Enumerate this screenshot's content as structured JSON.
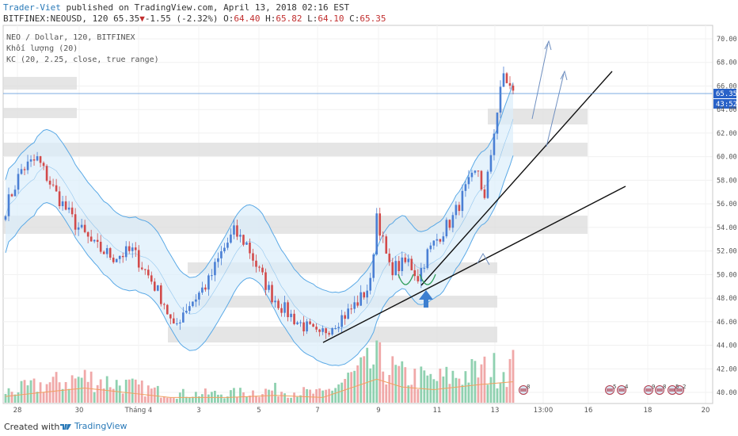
{
  "header": {
    "author": "Trader-Viet",
    "published_text": "published on TradingView.com, April 13, 2018 02:16 EST",
    "symbol_line": "BITFINEX:NEOUSD, 120 65.35",
    "change_arrow": "▼",
    "change": "-1.55 (-2.32%)",
    "o_label": "O:",
    "o_value": "64.40",
    "h_label": "H:",
    "h_value": "65.82",
    "l_label": "L:",
    "l_value": "64.10",
    "c_label": "C:",
    "c_value": "65.35"
  },
  "legend": {
    "line1": "NEO / Dollar, 120, BITFINEX",
    "line2": "Khối lượng (20)",
    "line3": "KC (20, 2.25, close, true range)"
  },
  "price_axis": {
    "ticks": [
      "70.00",
      "68.00",
      "66.00",
      "64.00",
      "62.00",
      "60.00",
      "58.00",
      "56.00",
      "54.00",
      "52.00",
      "50.00",
      "48.00",
      "46.00",
      "44.00",
      "42.00",
      "40.00"
    ],
    "last_price": "65.35",
    "countdown": "43:52"
  },
  "time_axis": {
    "labels": [
      "28",
      "30",
      "Tháng 4",
      "3",
      "5",
      "7",
      "9",
      "11",
      "13",
      "13:00",
      "16",
      "18",
      "20"
    ]
  },
  "event_markers": [
    "8",
    "5",
    "4",
    "9",
    "8",
    "5",
    "2"
  ],
  "footer": {
    "created_with": "Created with",
    "brand": "TradingView"
  },
  "colors": {
    "up": "#4a7fd4",
    "down": "#d24a4a",
    "vol_up": "#8fd1b0",
    "vol_down": "#f0a8a8",
    "band": "#5aa9e6",
    "band_fill": "#dbeefb",
    "zone": "#dcdcdc",
    "ma": "#f0a060",
    "trend": "#111111",
    "arrow": "#3d7fd0"
  },
  "chart_data": {
    "type": "candlestick",
    "symbol": "BITFINEX:NEOUSD",
    "interval": "120",
    "ylim": [
      39.5,
      70.8
    ],
    "last_price": 65.35,
    "ohlc_keypoints": [
      [
        0,
        55.6
      ],
      [
        5,
        58.9
      ],
      [
        10,
        59.8
      ],
      [
        16,
        56.8
      ],
      [
        22,
        54.3
      ],
      [
        28,
        52.4
      ],
      [
        34,
        51.5
      ],
      [
        40,
        52.0
      ],
      [
        46,
        49.5
      ],
      [
        50,
        47.6
      ],
      [
        53,
        45.3
      ],
      [
        56,
        46.9
      ],
      [
        60,
        48.1
      ],
      [
        64,
        49.4
      ],
      [
        68,
        51.8
      ],
      [
        72,
        53.6
      ],
      [
        76,
        52.6
      ],
      [
        80,
        50.2
      ],
      [
        84,
        48.2
      ],
      [
        88,
        47.0
      ],
      [
        92,
        46.0
      ],
      [
        96,
        45.3
      ],
      [
        99,
        44.6
      ],
      [
        100,
        45.1
      ],
      [
        104,
        46.0
      ],
      [
        108,
        46.8
      ],
      [
        112,
        48.0
      ],
      [
        115,
        49.2
      ],
      [
        117,
        55.2
      ],
      [
        119,
        52.7
      ],
      [
        121,
        50.5
      ],
      [
        124,
        50.7
      ],
      [
        127,
        51.1
      ],
      [
        130,
        49.8
      ],
      [
        133,
        51.8
      ],
      [
        137,
        53.4
      ],
      [
        141,
        54.8
      ],
      [
        145,
        57.2
      ],
      [
        149,
        58.9
      ],
      [
        151,
        56.2
      ],
      [
        154,
        62.3
      ],
      [
        157,
        67.0
      ],
      [
        160,
        65.3
      ]
    ],
    "volume_keypoints": [
      [
        0,
        0.12
      ],
      [
        12,
        0.2
      ],
      [
        25,
        0.28
      ],
      [
        40,
        0.18
      ],
      [
        52,
        0.1
      ],
      [
        70,
        0.1
      ],
      [
        85,
        0.14
      ],
      [
        100,
        0.1
      ],
      [
        117,
        0.45
      ],
      [
        125,
        0.3
      ],
      [
        135,
        0.25
      ],
      [
        150,
        0.35
      ],
      [
        160,
        0.4
      ]
    ]
  }
}
